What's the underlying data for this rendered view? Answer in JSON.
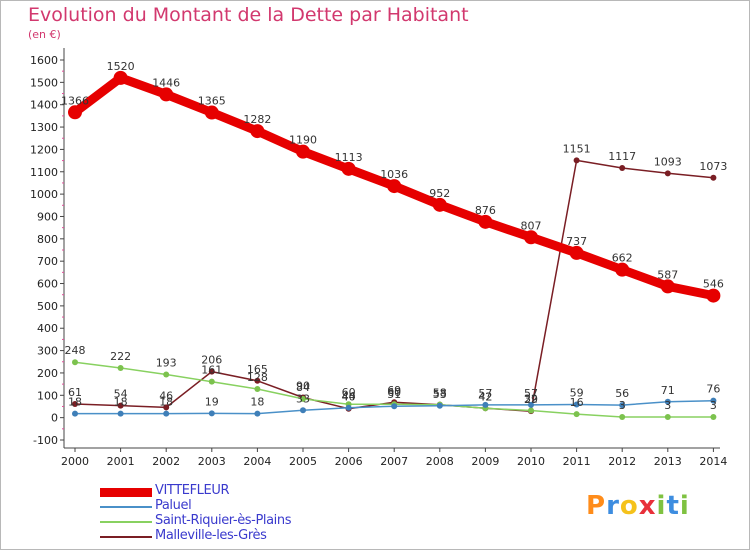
{
  "header": {
    "title": "Evolution du Montant de la Dette par Habitant",
    "subtitle": "(en €)"
  },
  "logo": {
    "text": "Proxiti",
    "letters": [
      {
        "ch": "P",
        "color": "#ff8c1a"
      },
      {
        "ch": "r",
        "color": "#3d8de0"
      },
      {
        "ch": "o",
        "color": "#f5c21b"
      },
      {
        "ch": "x",
        "color": "#e8303a"
      },
      {
        "ch": "i",
        "color": "#7fc241"
      },
      {
        "ch": "t",
        "color": "#3d8de0"
      },
      {
        "ch": "i",
        "color": "#7fc241"
      }
    ]
  },
  "chart_data": {
    "type": "line",
    "title": "Evolution du Montant de la Dette par Habitant",
    "subtitle": "(en €)",
    "x": [
      "2000",
      "2001",
      "2002",
      "2003",
      "2004",
      "2005",
      "2006",
      "2007",
      "2008",
      "2009",
      "2010",
      "2011",
      "2012",
      "2013",
      "2014"
    ],
    "yticks": [
      -100,
      0,
      100,
      200,
      300,
      400,
      500,
      600,
      700,
      800,
      900,
      1000,
      1100,
      1200,
      1300,
      1400,
      1500,
      1600
    ],
    "ylim": [
      -100,
      1600
    ],
    "grid": false,
    "legend_position": "bottom-left",
    "series": [
      {
        "name": "VITTEFLEUR",
        "color": "#e60000",
        "values": [
          1366,
          1520,
          1446,
          1365,
          1282,
          1190,
          1113,
          1036,
          952,
          876,
          807,
          737,
          662,
          587,
          546
        ]
      },
      {
        "name": "Paluel",
        "color": "#4a90c8",
        "values": [
          18,
          18,
          18,
          19,
          18,
          33,
          44,
          51,
          53,
          57,
          57,
          59,
          56,
          71,
          76
        ]
      },
      {
        "name": "Saint-Riquier-ès-Plains",
        "color": "#88d160",
        "values": [
          248,
          222,
          193,
          161,
          128,
          84,
          60,
          60,
          58,
          42,
          32,
          16,
          3,
          3,
          3
        ]
      },
      {
        "name": "Malleville-les-Grès",
        "color": "#7a1e24",
        "values": [
          61,
          54,
          46,
          206,
          165,
          90,
          40,
          69,
          58,
          42,
          29,
          1151,
          1117,
          1093,
          1073
        ]
      }
    ],
    "data_labels": [
      [
        "1366",
        "1520",
        "1446",
        "1365",
        "1282",
        "1190",
        "1113",
        "1036",
        "952",
        "876",
        "807",
        "737",
        "662",
        "587",
        "546"
      ],
      [
        "18",
        "18",
        "18",
        "19",
        "18",
        "33",
        "44",
        "51",
        "53",
        "57",
        "57",
        "59",
        "56",
        "71",
        "76"
      ],
      [
        "248",
        "222",
        "193",
        "161",
        "128",
        "84",
        "60",
        "60",
        "58",
        "42",
        "32",
        "16",
        "3",
        "3",
        "3"
      ],
      [
        "61",
        "54",
        "46",
        "206",
        "165",
        "90",
        "40",
        "69",
        "58",
        "42",
        "29",
        "1151",
        "1117",
        "1093",
        "1073"
      ]
    ]
  }
}
